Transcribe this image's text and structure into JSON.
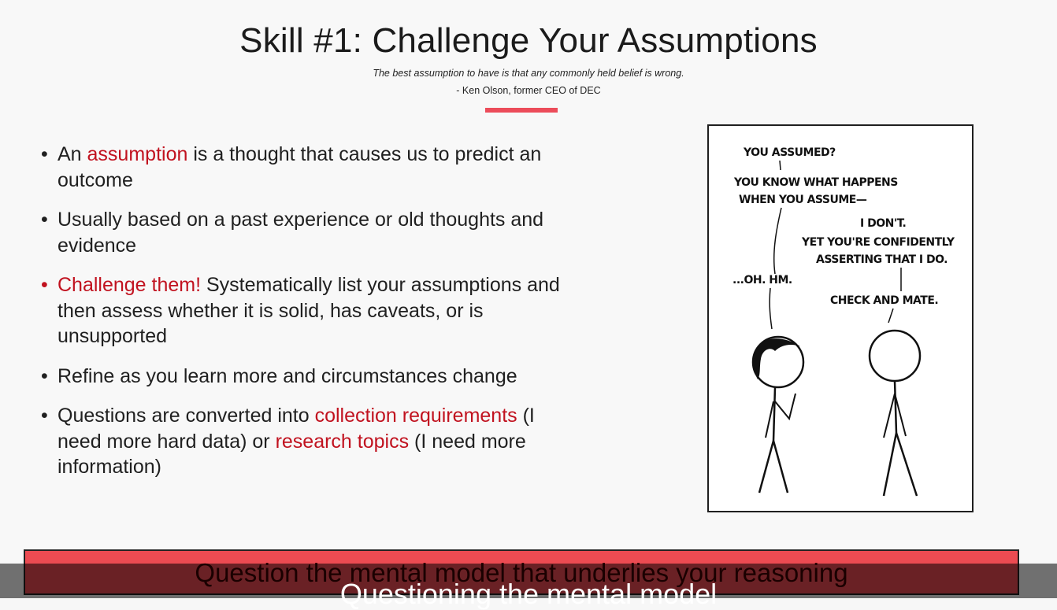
{
  "slide": {
    "title": "Skill #1: Challenge Your Assumptions",
    "quote": "The best assumption to have is that any commonly held belief is wrong.",
    "attribution": "- Ken Olson, former CEO of DEC",
    "accent_color": "#ec4c5a"
  },
  "bullets": [
    {
      "prefix": "An ",
      "highlight": "assumption",
      "suffix": " is a thought that causes us to predict an outcome"
    },
    {
      "text": "Usually based on a past experience or old thoughts and evidence"
    },
    {
      "highlight": "Challenge them!",
      "suffix": " Systematically list your assumptions and then assess whether it is solid, has caveats, or is unsupported"
    },
    {
      "text": "Refine as you learn more and circumstances change"
    },
    {
      "prefix": "Questions are converted into ",
      "highlight1": "collection requirements",
      "middle": " (I need more hard data) or ",
      "highlight2": "research topics",
      "suffix": " (I need more information)"
    }
  ],
  "comic": {
    "line1": "YOU ASSUMED?",
    "line2": "YOU KNOW WHAT HAPPENS",
    "line3": "WHEN YOU ASSUME—",
    "line4": "I DON'T.",
    "line5": "YET YOU'RE CONFIDENTLY",
    "line6": "ASSERTING THAT I DO.",
    "line7": "...OH. HM.",
    "line8": "CHECK AND MATE."
  },
  "banner": {
    "text": "Question the mental model that underlies your reasoning",
    "color": "#ec4b52"
  },
  "caption": {
    "text": "Questioning the mental model"
  }
}
